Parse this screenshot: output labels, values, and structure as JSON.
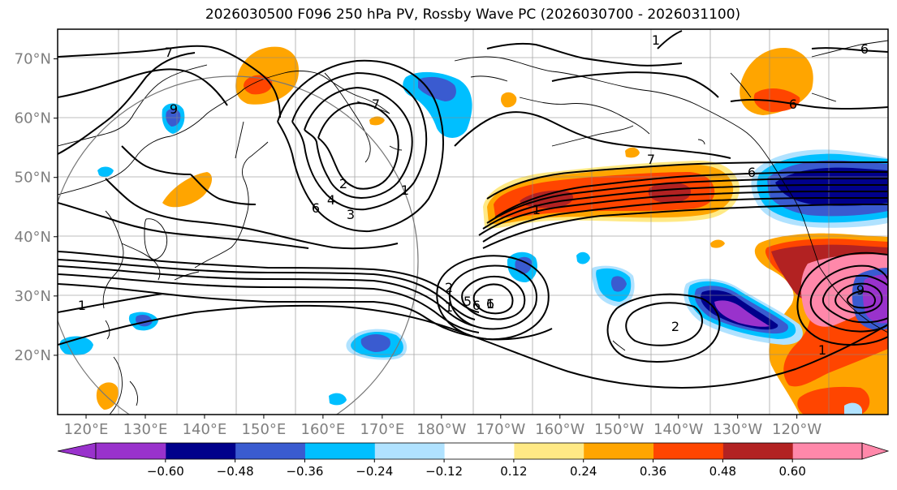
{
  "title": "2026030500 F096 250 hPa PV, Rossby Wave PC (2026030700 - 2026031100)",
  "lat_ticks": [
    {
      "value": 70,
      "label": "70°N"
    },
    {
      "value": 60,
      "label": "60°N"
    },
    {
      "value": 50,
      "label": "50°N"
    },
    {
      "value": 40,
      "label": "40°N"
    },
    {
      "value": 30,
      "label": "30°N"
    },
    {
      "value": 20,
      "label": "20°N"
    }
  ],
  "lon_ticks": [
    {
      "value": 120,
      "label": "120°E"
    },
    {
      "value": 130,
      "label": "130°E"
    },
    {
      "value": 140,
      "label": "140°E"
    },
    {
      "value": 150,
      "label": "150°E"
    },
    {
      "value": 160,
      "label": "160°E"
    },
    {
      "value": 170,
      "label": "170°E"
    },
    {
      "value": 180,
      "label": "180°W"
    },
    {
      "value": 190,
      "label": "170°W"
    },
    {
      "value": 200,
      "label": "160°W"
    },
    {
      "value": 210,
      "label": "150°W"
    },
    {
      "value": 220,
      "label": "140°W"
    },
    {
      "value": 230,
      "label": "130°W"
    },
    {
      "value": 240,
      "label": "120°W"
    }
  ],
  "colorbar": {
    "colors": [
      "#9932cc",
      "#00008b",
      "#3a5bd0",
      "#00bfff",
      "#b0e2ff",
      "#ffffff",
      "#ffe985",
      "#ffa500",
      "#ff4500",
      "#b22222",
      "#ff88aa"
    ],
    "tick_labels": [
      "−0.60",
      "−0.48",
      "−0.36",
      "−0.24",
      "−0.12",
      "0.12",
      "0.24",
      "0.36",
      "0.48",
      "0.60"
    ]
  },
  "contour_labels": [
    "7",
    "9",
    "6",
    "1",
    "6",
    "4",
    "3",
    "2",
    "1",
    "7",
    "1",
    "6",
    "7",
    "6",
    "1",
    "1",
    "6",
    "2",
    "5",
    "6",
    "1",
    "9",
    "2",
    "1"
  ]
}
